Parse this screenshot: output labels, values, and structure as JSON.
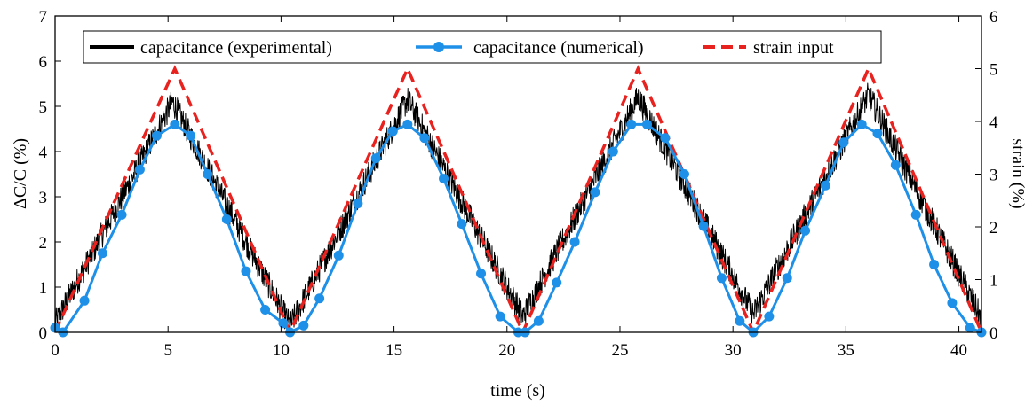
{
  "chart_data": {
    "type": "line",
    "xlabel": "time (s)",
    "ylabel_left": "ΔC/C (%)",
    "ylabel_right": "strain (%)",
    "xlim": [
      0,
      41
    ],
    "ylim_left": [
      0,
      7
    ],
    "ylim_right": [
      0,
      6
    ],
    "xticks": [
      0,
      5,
      10,
      15,
      20,
      25,
      30,
      35,
      40
    ],
    "yticks_left": [
      0,
      1,
      2,
      3,
      4,
      5,
      6,
      7
    ],
    "yticks_right": [
      0,
      1,
      2,
      3,
      4,
      5,
      6
    ],
    "grid": false,
    "legend_position": "top",
    "legend": [
      "capacitance (experimental)",
      "capacitance (numerical)",
      "strain input"
    ],
    "series": [
      {
        "name": "capacitance (experimental)",
        "axis": "left",
        "color": "#000000",
        "style": "noisy-solid",
        "noise_amplitude": 0.3,
        "x": [
          0,
          5.2,
          10.4,
          15.6,
          20.7,
          25.8,
          30.9,
          36.0,
          41.0
        ],
        "y": [
          0.2,
          5.1,
          0.15,
          5.15,
          0.35,
          5.2,
          0.4,
          5.25,
          0.3
        ]
      },
      {
        "name": "capacitance (numerical)",
        "axis": "left",
        "color": "#1e90e8",
        "style": "solid-markers",
        "x": [
          0.0,
          0.35,
          1.3,
          2.1,
          2.95,
          3.75,
          4.5,
          5.3,
          6.0,
          6.75,
          7.6,
          8.45,
          9.3,
          10.1,
          10.4,
          11.0,
          11.7,
          12.55,
          13.4,
          14.2,
          14.95,
          15.6,
          16.35,
          17.2,
          18.0,
          18.85,
          19.7,
          20.5,
          20.8,
          21.4,
          22.2,
          23.0,
          23.9,
          24.7,
          25.5,
          26.2,
          27.0,
          27.85,
          28.7,
          29.5,
          30.3,
          30.9,
          31.6,
          32.4,
          33.2,
          34.1,
          34.9,
          35.7,
          36.4,
          37.2,
          38.1,
          38.9,
          39.7,
          40.5,
          41.0
        ],
        "y": [
          0.1,
          0.0,
          0.7,
          1.75,
          2.6,
          3.6,
          4.35,
          4.6,
          4.35,
          3.5,
          2.5,
          1.35,
          0.5,
          0.2,
          0.0,
          0.15,
          0.75,
          1.7,
          2.85,
          3.85,
          4.45,
          4.6,
          4.3,
          3.4,
          2.4,
          1.3,
          0.35,
          0.0,
          0.0,
          0.25,
          1.1,
          2.0,
          3.1,
          4.0,
          4.6,
          4.6,
          4.3,
          3.5,
          2.35,
          1.2,
          0.25,
          0.0,
          0.35,
          1.2,
          2.25,
          3.25,
          4.2,
          4.6,
          4.4,
          3.7,
          2.6,
          1.5,
          0.65,
          0.1,
          0.0
        ]
      },
      {
        "name": "strain input",
        "axis": "right",
        "color": "#e8221e",
        "style": "dashed",
        "x": [
          0.0,
          5.3,
          10.4,
          15.6,
          20.7,
          25.8,
          30.9,
          36.0,
          41.0
        ],
        "y": [
          0.0,
          5.0,
          0.0,
          5.0,
          0.0,
          5.0,
          0.0,
          5.0,
          0.0
        ]
      }
    ]
  }
}
